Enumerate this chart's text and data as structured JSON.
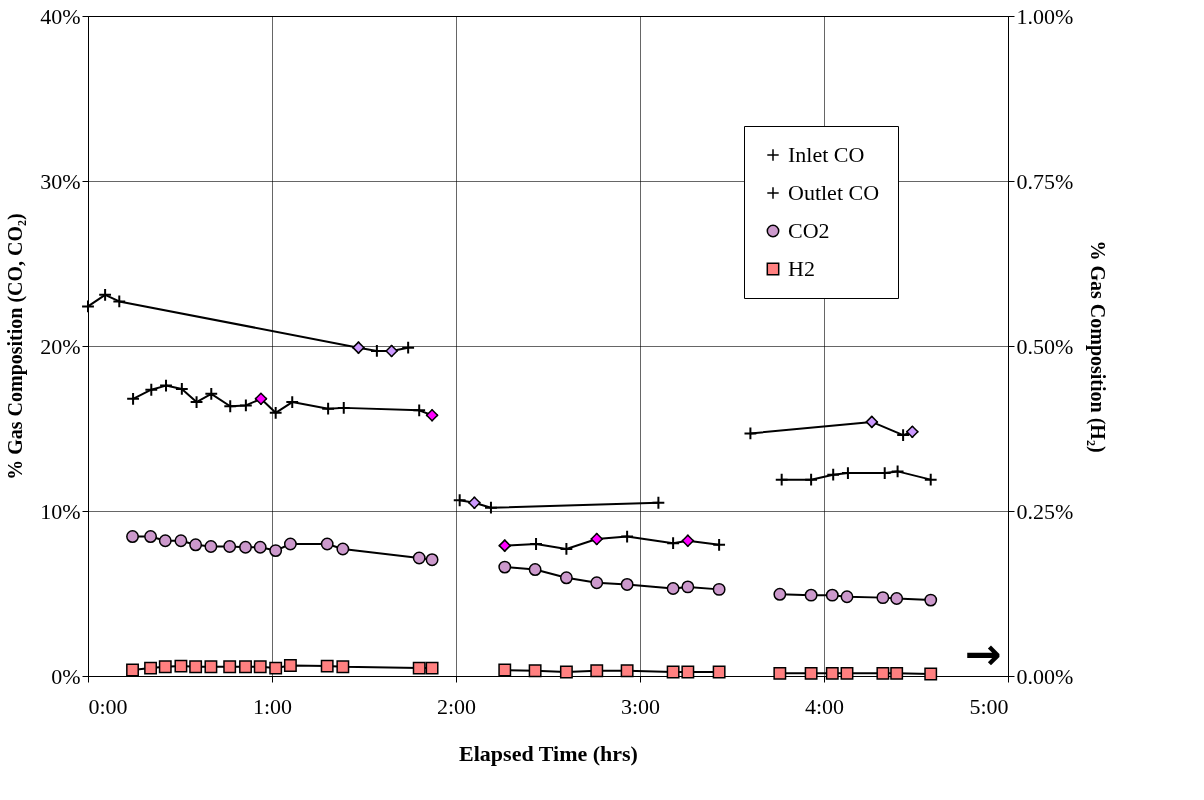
{
  "chart_data": {
    "type": "line",
    "xlabel": "Elapsed Time (hrs)",
    "ylabel": "% Gas Composition (CO, CO₂)",
    "y2label": "% Gas Composition (H₂)",
    "xlim": [
      0,
      5
    ],
    "xticks": [
      {
        "value": 0,
        "label": "0:00"
      },
      {
        "value": 1,
        "label": "1:00"
      },
      {
        "value": 2,
        "label": "2:00"
      },
      {
        "value": 3,
        "label": "3:00"
      },
      {
        "value": 4,
        "label": "4:00"
      },
      {
        "value": 5,
        "label": "5:00"
      }
    ],
    "ylim": [
      0,
      40
    ],
    "yticks": [
      {
        "value": 0,
        "label": "0%"
      },
      {
        "value": 10,
        "label": "10%"
      },
      {
        "value": 20,
        "label": "20%"
      },
      {
        "value": 30,
        "label": "30%"
      },
      {
        "value": 40,
        "label": "40%"
      }
    ],
    "y2lim": [
      0,
      1
    ],
    "y2ticks": [
      {
        "value": 0,
        "label": "0.00%"
      },
      {
        "value": 0.25,
        "label": "0.25%"
      },
      {
        "value": 0.5,
        "label": "0.50%"
      },
      {
        "value": 0.75,
        "label": "0.75%"
      },
      {
        "value": 1,
        "label": "1.00%"
      }
    ],
    "grid": true,
    "legend": "top right",
    "annotations": [
      "→"
    ],
    "series": [
      {
        "name": "Inlet CO",
        "type": "line",
        "marker": "cross",
        "color": "#000000",
        "x": [
          0.0,
          0.093,
          0.17,
          1.47,
          1.57,
          1.65,
          1.74,
          null,
          2.02,
          2.1,
          2.19,
          3.1,
          null,
          3.6,
          4.26,
          4.43,
          4.48
        ],
        "values": [
          22.4,
          23.1,
          22.7,
          19.9,
          19.7,
          19.7,
          19.9,
          null,
          10.65,
          10.5,
          10.2,
          10.5,
          null,
          14.7,
          15.4,
          14.6,
          14.8
        ]
      },
      {
        "name": "Outlet CO",
        "type": "line",
        "marker": "cross",
        "color": "#000000",
        "x": [
          0.245,
          0.344,
          0.424,
          0.51,
          0.59,
          0.67,
          0.773,
          0.858,
          0.94,
          1.02,
          1.11,
          1.305,
          1.39,
          1.8,
          1.87,
          null,
          2.265,
          2.435,
          2.6,
          2.765,
          2.93,
          3.18,
          3.26,
          3.43,
          null,
          3.77,
          3.93,
          4.05,
          4.13,
          4.33,
          4.4,
          4.58
        ],
        "values": [
          16.8,
          17.35,
          17.6,
          17.4,
          16.6,
          17.1,
          16.35,
          16.4,
          16.8,
          15.95,
          16.6,
          16.2,
          16.25,
          16.1,
          15.8,
          null,
          7.9,
          8.0,
          7.7,
          8.3,
          8.45,
          8.05,
          8.2,
          7.95,
          null,
          11.9,
          11.9,
          12.2,
          12.3,
          12.3,
          12.4,
          11.9
        ]
      },
      {
        "name": "CO2",
        "type": "line",
        "marker": "circle",
        "color": "#cc99cc",
        "x": [
          0.242,
          0.34,
          0.42,
          0.505,
          0.585,
          0.668,
          0.77,
          0.856,
          0.936,
          1.02,
          1.1,
          1.3,
          1.385,
          1.8,
          1.87,
          null,
          2.265,
          2.43,
          2.6,
          2.765,
          2.93,
          3.18,
          3.26,
          3.43,
          null,
          3.76,
          3.93,
          4.045,
          4.125,
          4.32,
          4.395,
          4.58
        ],
        "values": [
          8.45,
          8.45,
          8.2,
          8.2,
          7.95,
          7.85,
          7.85,
          7.8,
          7.8,
          7.6,
          8.0,
          8.0,
          7.7,
          7.15,
          7.05,
          null,
          6.6,
          6.45,
          5.95,
          5.65,
          5.55,
          5.3,
          5.4,
          5.25,
          null,
          4.95,
          4.9,
          4.9,
          4.8,
          4.75,
          4.7,
          4.6
        ]
      },
      {
        "name": "H2",
        "type": "line",
        "marker": "square",
        "color": "#ff8080",
        "axis": "y2",
        "x": [
          0.242,
          0.34,
          0.42,
          0.505,
          0.585,
          0.668,
          0.77,
          0.856,
          0.936,
          1.02,
          1.1,
          1.3,
          1.385,
          1.8,
          1.87,
          null,
          2.265,
          2.43,
          2.6,
          2.765,
          2.93,
          3.18,
          3.26,
          3.43,
          null,
          3.76,
          3.93,
          4.045,
          4.125,
          4.32,
          4.395,
          4.58
        ],
        "values": [
          0.009,
          0.012,
          0.014,
          0.015,
          0.014,
          0.014,
          0.014,
          0.014,
          0.014,
          0.012,
          0.016,
          0.015,
          0.014,
          0.012,
          0.012,
          null,
          0.009,
          0.008,
          0.006,
          0.008,
          0.008,
          0.006,
          0.006,
          0.006,
          null,
          0.004,
          0.004,
          0.004,
          0.004,
          0.004,
          0.004,
          0.003
        ]
      },
      {
        "type": "scatter",
        "marker": "diamond",
        "color": "#cc99ff",
        "x": [
          1.47,
          1.65,
          2.1,
          4.26,
          4.48
        ],
        "values": [
          19.9,
          19.7,
          10.5,
          15.4,
          14.8
        ]
      },
      {
        "type": "scatter",
        "marker": "diamond",
        "color": "#ff00ff",
        "x": [
          0.94,
          1.87,
          2.265,
          2.765,
          3.26
        ],
        "values": [
          16.8,
          15.8,
          7.9,
          8.3,
          8.2
        ]
      }
    ]
  }
}
